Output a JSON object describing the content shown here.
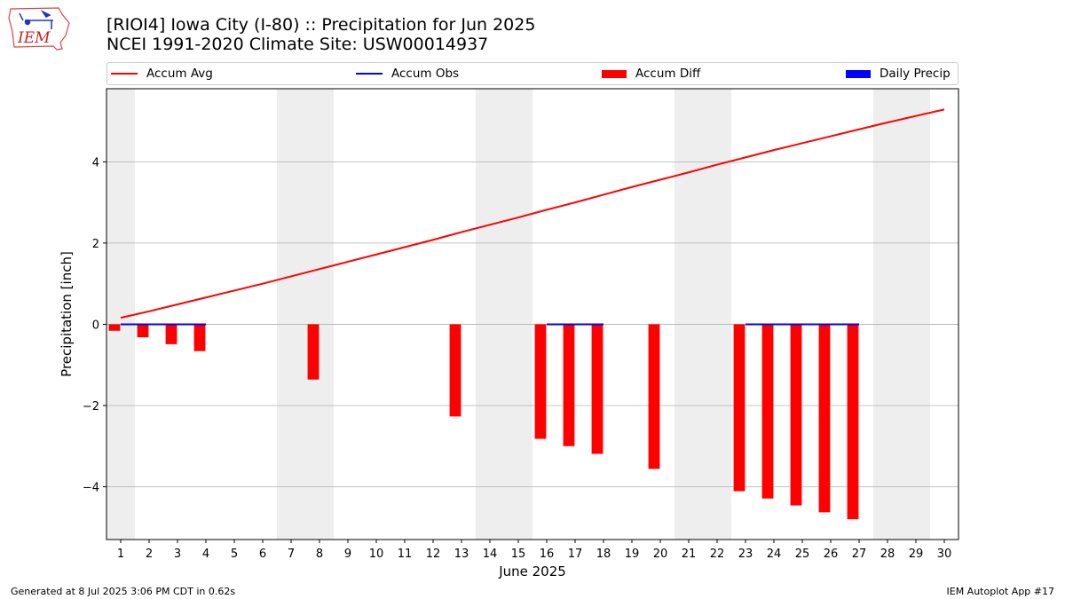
{
  "title": "[RIOI4] Iowa City (I-80) :: Precipitation for Jun 2025",
  "subtitle": "NCEI 1991-2020 Climate Site: USW00014937",
  "logo_text": "IEM",
  "footer_left": "Generated at 8 Jul 2025 3:06 PM CDT in 0.62s",
  "footer_right": "IEM Autoplot App #17",
  "legend": [
    {
      "label": "Accum Avg",
      "kind": "line",
      "color": "#ff0000"
    },
    {
      "label": "Accum Obs",
      "kind": "line",
      "color": "#0000ff"
    },
    {
      "label": "Accum Diff",
      "kind": "box",
      "color": "#ff0000"
    },
    {
      "label": "Daily Precip",
      "kind": "box",
      "color": "#0000ff"
    }
  ],
  "chart_data": {
    "type": "bar",
    "xlabel": "June 2025",
    "ylabel": "Precipitation [inch]",
    "xlim": [
      0.5,
      30.5
    ],
    "ylim": [
      -5.3,
      5.8
    ],
    "yticks": [
      -4,
      -2,
      0,
      2,
      4
    ],
    "ytick_labels": [
      "−4",
      "−2",
      "0",
      "2",
      "4"
    ],
    "xticks": [
      1,
      2,
      3,
      4,
      5,
      6,
      7,
      8,
      9,
      10,
      11,
      12,
      13,
      14,
      15,
      16,
      17,
      18,
      19,
      20,
      21,
      22,
      23,
      24,
      25,
      26,
      27,
      28,
      29,
      30
    ],
    "weekend_shading": [
      [
        0.5,
        1.5
      ],
      [
        6.5,
        8.5
      ],
      [
        13.5,
        15.5
      ],
      [
        20.5,
        22.5
      ],
      [
        27.5,
        29.5
      ]
    ],
    "grid": "y",
    "series": [
      {
        "name": "Accum Avg",
        "type": "line",
        "color": "#ff0000",
        "x": [
          1,
          2,
          3,
          4,
          5,
          6,
          7,
          8,
          9,
          10,
          11,
          12,
          13,
          14,
          15,
          16,
          17,
          18,
          19,
          20,
          21,
          22,
          23,
          24,
          25,
          26,
          27,
          28,
          29,
          30
        ],
        "values": [
          0.16,
          0.32,
          0.49,
          0.66,
          0.83,
          1.0,
          1.18,
          1.36,
          1.54,
          1.72,
          1.9,
          2.08,
          2.27,
          2.45,
          2.63,
          2.82,
          3.0,
          3.19,
          3.38,
          3.56,
          3.74,
          3.93,
          4.11,
          4.29,
          4.46,
          4.63,
          4.8,
          4.97,
          5.13,
          5.29
        ]
      },
      {
        "name": "Accum Obs",
        "type": "step",
        "color": "#0000ff",
        "segments": [
          [
            1,
            4,
            0.0
          ],
          [
            16,
            18,
            0.0
          ],
          [
            23,
            27,
            0.0
          ]
        ]
      },
      {
        "name": "Accum Diff",
        "type": "bar",
        "color": "#ff0000",
        "x": [
          1,
          2,
          3,
          4,
          8,
          13,
          16,
          17,
          18,
          20,
          23,
          24,
          25,
          26,
          27
        ],
        "values": [
          -0.16,
          -0.32,
          -0.49,
          -0.66,
          -1.36,
          -2.27,
          -2.82,
          -3.0,
          -3.19,
          -3.56,
          -4.11,
          -4.29,
          -4.46,
          -4.63,
          -4.8
        ]
      },
      {
        "name": "Daily Precip",
        "type": "bar",
        "color": "#0000ff",
        "x": [],
        "values": []
      }
    ]
  }
}
